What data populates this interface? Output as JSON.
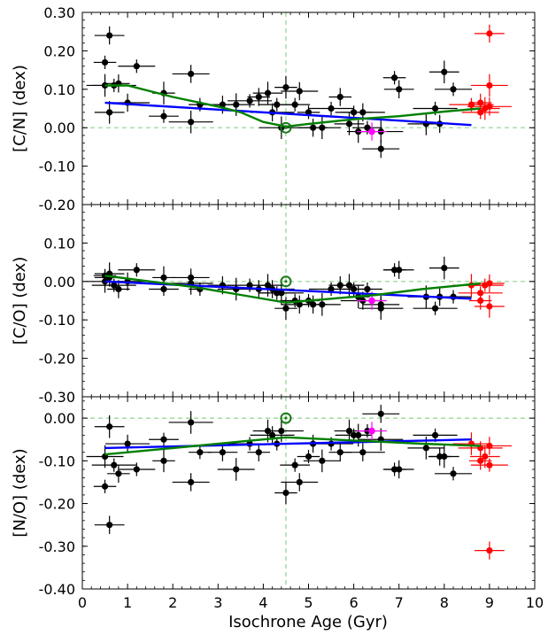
{
  "chart_data": {
    "type": "scatter",
    "xlabel": "Isochrone Age (Gyr)",
    "xlim": [
      0,
      10
    ],
    "xticks": [
      "0",
      "1",
      "2",
      "3",
      "4",
      "5",
      "6",
      "7",
      "8",
      "9",
      "10"
    ],
    "reference_x": 4.5,
    "panels": [
      {
        "ylabel": "[C/N] (dex)",
        "ylim": [
          -0.2,
          0.3
        ],
        "yticks": [
          "0.30",
          "0.20",
          "0.10",
          "0.00",
          "-0.10",
          "-0.20"
        ],
        "sun": {
          "x": 4.5,
          "y": 0.0
        },
        "highlight": {
          "x": 6.4,
          "y": -0.01
        },
        "stars": [
          {
            "x": 0.5,
            "y": 0.17
          },
          {
            "x": 0.6,
            "y": 0.24
          },
          {
            "x": 0.5,
            "y": 0.11
          },
          {
            "x": 0.7,
            "y": 0.11
          },
          {
            "x": 0.8,
            "y": 0.115
          },
          {
            "x": 0.6,
            "y": 0.04
          },
          {
            "x": 1.2,
            "y": 0.16
          },
          {
            "x": 1.0,
            "y": 0.065
          },
          {
            "x": 1.8,
            "y": 0.09
          },
          {
            "x": 1.8,
            "y": 0.03
          },
          {
            "x": 2.4,
            "y": 0.14
          },
          {
            "x": 2.4,
            "y": 0.015
          },
          {
            "x": 2.6,
            "y": 0.06
          },
          {
            "x": 3.1,
            "y": 0.06
          },
          {
            "x": 3.4,
            "y": 0.06
          },
          {
            "x": 3.7,
            "y": 0.07
          },
          {
            "x": 3.9,
            "y": 0.08
          },
          {
            "x": 4.1,
            "y": 0.09
          },
          {
            "x": 4.3,
            "y": 0.06
          },
          {
            "x": 4.2,
            "y": 0.04
          },
          {
            "x": 4.5,
            "y": 0.105
          },
          {
            "x": 4.7,
            "y": 0.06
          },
          {
            "x": 4.8,
            "y": 0.095
          },
          {
            "x": 4.4,
            "y": 0.0
          },
          {
            "x": 5.0,
            "y": 0.04
          },
          {
            "x": 5.1,
            "y": 0.0
          },
          {
            "x": 5.3,
            "y": 0.0
          },
          {
            "x": 5.5,
            "y": 0.05
          },
          {
            "x": 5.7,
            "y": 0.08
          },
          {
            "x": 5.9,
            "y": 0.01
          },
          {
            "x": 6.0,
            "y": 0.04
          },
          {
            "x": 6.2,
            "y": 0.04
          },
          {
            "x": 6.1,
            "y": -0.01
          },
          {
            "x": 6.3,
            "y": 0.0
          },
          {
            "x": 6.6,
            "y": -0.055
          },
          {
            "x": 6.6,
            "y": -0.01
          },
          {
            "x": 6.9,
            "y": 0.13
          },
          {
            "x": 7.0,
            "y": 0.1
          },
          {
            "x": 7.6,
            "y": 0.01
          },
          {
            "x": 7.8,
            "y": 0.05
          },
          {
            "x": 7.9,
            "y": 0.01
          },
          {
            "x": 8.0,
            "y": 0.145
          },
          {
            "x": 8.2,
            "y": 0.1
          }
        ],
        "old_stars": [
          {
            "x": 9.0,
            "y": 0.245
          },
          {
            "x": 9.0,
            "y": 0.11
          },
          {
            "x": 8.6,
            "y": 0.06
          },
          {
            "x": 8.8,
            "y": 0.065
          },
          {
            "x": 8.9,
            "y": 0.05
          },
          {
            "x": 8.8,
            "y": 0.04
          },
          {
            "x": 9.0,
            "y": 0.055
          }
        ],
        "fit_line": [
          {
            "x": 0.5,
            "y": 0.065
          },
          {
            "x": 8.6,
            "y": 0.007
          }
        ],
        "trend_curve": [
          {
            "x": 0.5,
            "y": 0.11
          },
          {
            "x": 1.0,
            "y": 0.11
          },
          {
            "x": 2.0,
            "y": 0.08
          },
          {
            "x": 3.0,
            "y": 0.055
          },
          {
            "x": 3.5,
            "y": 0.04
          },
          {
            "x": 4.0,
            "y": 0.015
          },
          {
            "x": 4.5,
            "y": 0.003
          },
          {
            "x": 5.0,
            "y": 0.01
          },
          {
            "x": 6.0,
            "y": 0.022
          },
          {
            "x": 7.0,
            "y": 0.03
          },
          {
            "x": 8.0,
            "y": 0.042
          },
          {
            "x": 8.8,
            "y": 0.05
          }
        ]
      },
      {
        "ylabel": "[C/O] (dex)",
        "ylim": [
          -0.3,
          0.2
        ],
        "yticks": [
          "0.10",
          "0.00",
          "-0.10",
          "-0.20",
          "-0.30"
        ],
        "sun": {
          "x": 4.5,
          "y": 0.0
        },
        "highlight": {
          "x": 6.4,
          "y": -0.05
        },
        "stars": [
          {
            "x": 0.5,
            "y": 0.015
          },
          {
            "x": 0.6,
            "y": 0.01
          },
          {
            "x": 0.5,
            "y": 0.0
          },
          {
            "x": 0.7,
            "y": -0.01
          },
          {
            "x": 0.8,
            "y": -0.02
          },
          {
            "x": 0.6,
            "y": 0.02
          },
          {
            "x": 1.2,
            "y": 0.03
          },
          {
            "x": 1.0,
            "y": 0.0
          },
          {
            "x": 1.8,
            "y": 0.01
          },
          {
            "x": 1.8,
            "y": -0.02
          },
          {
            "x": 2.4,
            "y": 0.01
          },
          {
            "x": 2.4,
            "y": -0.005
          },
          {
            "x": 2.6,
            "y": -0.02
          },
          {
            "x": 3.1,
            "y": -0.01
          },
          {
            "x": 3.4,
            "y": -0.02
          },
          {
            "x": 3.7,
            "y": -0.01
          },
          {
            "x": 3.9,
            "y": -0.02
          },
          {
            "x": 4.1,
            "y": -0.01
          },
          {
            "x": 4.3,
            "y": -0.03
          },
          {
            "x": 4.2,
            "y": -0.02
          },
          {
            "x": 4.5,
            "y": -0.07
          },
          {
            "x": 4.7,
            "y": -0.05
          },
          {
            "x": 4.8,
            "y": -0.06
          },
          {
            "x": 4.4,
            "y": -0.03
          },
          {
            "x": 5.0,
            "y": -0.05
          },
          {
            "x": 5.1,
            "y": -0.06
          },
          {
            "x": 5.3,
            "y": -0.06
          },
          {
            "x": 5.5,
            "y": -0.02
          },
          {
            "x": 5.7,
            "y": -0.01
          },
          {
            "x": 5.9,
            "y": -0.01
          },
          {
            "x": 6.0,
            "y": -0.02
          },
          {
            "x": 6.2,
            "y": -0.05
          },
          {
            "x": 6.1,
            "y": -0.04
          },
          {
            "x": 6.3,
            "y": -0.02
          },
          {
            "x": 6.6,
            "y": -0.06
          },
          {
            "x": 6.6,
            "y": -0.07
          },
          {
            "x": 6.9,
            "y": 0.03
          },
          {
            "x": 7.0,
            "y": 0.03
          },
          {
            "x": 7.6,
            "y": -0.04
          },
          {
            "x": 7.8,
            "y": -0.07
          },
          {
            "x": 7.9,
            "y": -0.04
          },
          {
            "x": 8.0,
            "y": 0.035
          },
          {
            "x": 8.2,
            "y": -0.04
          }
        ],
        "old_stars": [
          {
            "x": 9.0,
            "y": -0.005
          },
          {
            "x": 8.6,
            "y": -0.01
          },
          {
            "x": 8.8,
            "y": -0.03
          },
          {
            "x": 8.8,
            "y": -0.05
          },
          {
            "x": 9.0,
            "y": -0.065
          },
          {
            "x": 8.9,
            "y": -0.01
          }
        ],
        "fit_line": [
          {
            "x": 0.5,
            "y": 0.0
          },
          {
            "x": 8.6,
            "y": -0.045
          }
        ],
        "trend_curve": [
          {
            "x": 0.5,
            "y": 0.015
          },
          {
            "x": 1.5,
            "y": 0.0
          },
          {
            "x": 2.5,
            "y": -0.015
          },
          {
            "x": 3.5,
            "y": -0.035
          },
          {
            "x": 4.5,
            "y": -0.055
          },
          {
            "x": 5.5,
            "y": -0.045
          },
          {
            "x": 6.5,
            "y": -0.035
          },
          {
            "x": 7.5,
            "y": -0.02
          },
          {
            "x": 8.8,
            "y": -0.005
          }
        ]
      },
      {
        "ylabel": "[N/O] (dex)",
        "ylim": [
          -0.4,
          0.05
        ],
        "yticks": [
          "0.00",
          "-0.10",
          "-0.20",
          "-0.30",
          "-0.40"
        ],
        "sun": {
          "x": 4.5,
          "y": 0.0
        },
        "highlight": {
          "x": 6.4,
          "y": -0.03
        },
        "stars": [
          {
            "x": 0.5,
            "y": -0.16
          },
          {
            "x": 0.6,
            "y": -0.25
          },
          {
            "x": 0.5,
            "y": -0.09
          },
          {
            "x": 0.7,
            "y": -0.11
          },
          {
            "x": 0.8,
            "y": -0.13
          },
          {
            "x": 0.6,
            "y": -0.02
          },
          {
            "x": 1.2,
            "y": -0.12
          },
          {
            "x": 1.0,
            "y": -0.06
          },
          {
            "x": 1.8,
            "y": -0.1
          },
          {
            "x": 1.8,
            "y": -0.05
          },
          {
            "x": 2.4,
            "y": -0.15
          },
          {
            "x": 2.4,
            "y": -0.01
          },
          {
            "x": 2.6,
            "y": -0.08
          },
          {
            "x": 3.1,
            "y": -0.08
          },
          {
            "x": 3.4,
            "y": -0.12
          },
          {
            "x": 3.7,
            "y": -0.06
          },
          {
            "x": 3.9,
            "y": -0.08
          },
          {
            "x": 4.1,
            "y": -0.03
          },
          {
            "x": 4.3,
            "y": -0.06
          },
          {
            "x": 4.2,
            "y": -0.04
          },
          {
            "x": 4.5,
            "y": -0.175
          },
          {
            "x": 4.7,
            "y": -0.11
          },
          {
            "x": 4.8,
            "y": -0.15
          },
          {
            "x": 4.4,
            "y": -0.03
          },
          {
            "x": 5.0,
            "y": -0.09
          },
          {
            "x": 5.1,
            "y": -0.06
          },
          {
            "x": 5.3,
            "y": -0.1
          },
          {
            "x": 5.5,
            "y": -0.06
          },
          {
            "x": 5.7,
            "y": -0.08
          },
          {
            "x": 5.9,
            "y": -0.03
          },
          {
            "x": 6.0,
            "y": -0.04
          },
          {
            "x": 6.2,
            "y": -0.08
          },
          {
            "x": 6.1,
            "y": -0.04
          },
          {
            "x": 6.3,
            "y": -0.03
          },
          {
            "x": 6.6,
            "y": 0.01
          },
          {
            "x": 6.6,
            "y": -0.05
          },
          {
            "x": 6.9,
            "y": -0.12
          },
          {
            "x": 7.0,
            "y": -0.12
          },
          {
            "x": 7.6,
            "y": -0.07
          },
          {
            "x": 7.8,
            "y": -0.04
          },
          {
            "x": 7.9,
            "y": -0.09
          },
          {
            "x": 8.0,
            "y": -0.09
          },
          {
            "x": 8.2,
            "y": -0.13
          }
        ],
        "old_stars": [
          {
            "x": 9.0,
            "y": -0.31
          },
          {
            "x": 8.6,
            "y": -0.06
          },
          {
            "x": 8.8,
            "y": -0.07
          },
          {
            "x": 8.8,
            "y": -0.1
          },
          {
            "x": 8.9,
            "y": -0.09
          },
          {
            "x": 9.0,
            "y": -0.11
          },
          {
            "x": 9.0,
            "y": -0.065
          }
        ],
        "fit_line": [
          {
            "x": 0.5,
            "y": -0.07
          },
          {
            "x": 8.6,
            "y": -0.05
          }
        ],
        "trend_curve": [
          {
            "x": 0.5,
            "y": -0.085
          },
          {
            "x": 1.5,
            "y": -0.075
          },
          {
            "x": 2.5,
            "y": -0.065
          },
          {
            "x": 3.5,
            "y": -0.055
          },
          {
            "x": 4.5,
            "y": -0.045
          },
          {
            "x": 5.5,
            "y": -0.05
          },
          {
            "x": 6.5,
            "y": -0.055
          },
          {
            "x": 7.5,
            "y": -0.06
          },
          {
            "x": 8.8,
            "y": -0.065
          }
        ]
      }
    ],
    "colors": {
      "stars": "#000000",
      "old_stars": "#ff0000",
      "highlight": "#ff00ff",
      "sun": "#1a7a1a",
      "fit_line": "#0000ff",
      "trend_curve": "#008000",
      "reference_lines": "#8fd18f"
    }
  }
}
